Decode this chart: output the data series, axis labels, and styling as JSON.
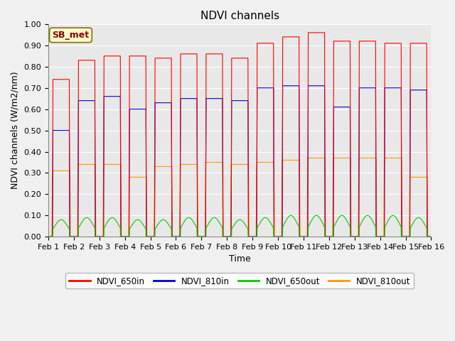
{
  "title": "NDVI channels",
  "xlabel": "Time",
  "ylabel": "NDVI channels (W/m2/nm)",
  "ylim": [
    0.0,
    1.0
  ],
  "yticks": [
    0.0,
    0.1,
    0.2,
    0.3,
    0.4,
    0.5,
    0.6,
    0.7,
    0.8,
    0.9,
    1.0
  ],
  "xtick_labels": [
    "Feb 1",
    "Feb 2",
    "Feb 3",
    "Feb 4",
    "Feb 5",
    "Feb 6",
    "Feb 7",
    "Feb 8",
    "Feb 9",
    "Feb 10",
    "Feb 11",
    "Feb 12",
    "Feb 13",
    "Feb 14",
    "Feb 15",
    "Feb 16"
  ],
  "annotation": "SB_met",
  "legend_entries": [
    "NDVI_650in",
    "NDVI_810in",
    "NDVI_650out",
    "NDVI_810out"
  ],
  "line_colors": [
    "#ff0000",
    "#0000cc",
    "#00cc00",
    "#ff9900"
  ],
  "background_color": "#e8e8e8",
  "grid_color": "#ffffff",
  "spike_peaks_650in": [
    0.74,
    0.83,
    0.85,
    0.85,
    0.84,
    0.86,
    0.86,
    0.84,
    0.91,
    0.94,
    0.96,
    0.92,
    0.92,
    0.91,
    0.91
  ],
  "spike_peaks_810in": [
    0.5,
    0.64,
    0.66,
    0.6,
    0.63,
    0.65,
    0.65,
    0.64,
    0.7,
    0.71,
    0.71,
    0.61,
    0.7,
    0.7,
    0.69
  ],
  "spike_peaks_650out": [
    0.08,
    0.09,
    0.09,
    0.08,
    0.08,
    0.09,
    0.09,
    0.08,
    0.09,
    0.1,
    0.1,
    0.1,
    0.1,
    0.1,
    0.09
  ],
  "spike_peaks_810out": [
    0.31,
    0.34,
    0.34,
    0.28,
    0.33,
    0.34,
    0.35,
    0.34,
    0.35,
    0.36,
    0.37,
    0.37,
    0.37,
    0.37,
    0.28
  ],
  "n_days": 15,
  "points_per_day": 200,
  "title_fontsize": 11,
  "label_fontsize": 9,
  "tick_fontsize": 8,
  "figsize": [
    6.4,
    4.8
  ],
  "dpi": 100
}
